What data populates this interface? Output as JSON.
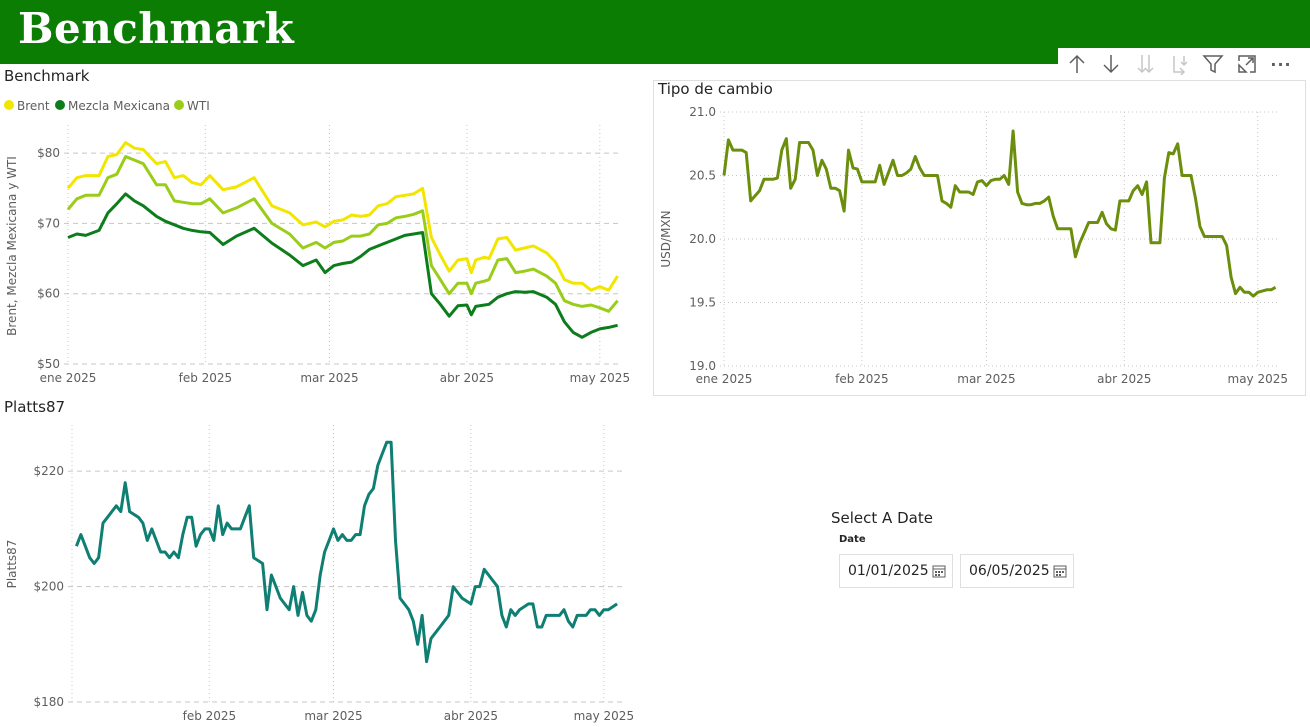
{
  "banner": {
    "title": "Benchmark"
  },
  "toolbar": {
    "buttons": [
      "arrow-up-icon",
      "arrow-down-icon",
      "double-arrow-down-icon",
      "expand-hierarchy-icon",
      "filter-icon",
      "focus-mode-icon",
      "more-options-icon"
    ],
    "more_label": "···"
  },
  "colors": {
    "banner": "#0b7d03",
    "brent": "#f2e600",
    "mezcla": "#0d7d1c",
    "wti": "#9acd19",
    "fx": "#6b8e0c",
    "platts": "#0e7f72"
  },
  "benchmark": {
    "title": "Benchmark",
    "legend": [
      "Brent",
      "Mezcla Mexicana",
      "WTI"
    ],
    "ylabel": "Brent, Mezcla Mexicana y WTI",
    "yticks": [
      "$50",
      "$60",
      "$70",
      "$80"
    ],
    "xticks": [
      "ene 2025",
      "feb 2025",
      "mar 2025",
      "abr 2025",
      "may 2025"
    ]
  },
  "fx_chart": {
    "title": "Tipo de cambio",
    "ylabel": "USD/MXN",
    "yticks": [
      "19.0",
      "19.5",
      "20.0",
      "20.5",
      "21.0"
    ],
    "xticks": [
      "ene 2025",
      "feb 2025",
      "mar 2025",
      "abr 2025",
      "may 2025"
    ]
  },
  "platts_chart": {
    "title": "Platts87",
    "ylabel": "Platts87",
    "yticks": [
      "$180",
      "$200",
      "$220"
    ],
    "xticks": [
      "feb 2025",
      "mar 2025",
      "abr 2025",
      "may 2025"
    ]
  },
  "slicer": {
    "title": "Select A Date",
    "label": "Date",
    "start": "01/01/2025",
    "end": "06/05/2025"
  },
  "chart_data": [
    {
      "type": "line",
      "title": "Benchmark",
      "ylabel": "Brent, Mezcla Mexicana y WTI",
      "ylim": [
        50,
        84
      ],
      "xlim": [
        0,
        125
      ],
      "x_axis": "days since 2025-01-01",
      "grid": true,
      "legend_position": "top-left",
      "series": [
        {
          "name": "Brent",
          "x": [
            0,
            2,
            4,
            7,
            9,
            11,
            13,
            15,
            17,
            20,
            22,
            24,
            26,
            28,
            30,
            32,
            35,
            38,
            42,
            46,
            50,
            53,
            56,
            58,
            60,
            62,
            64,
            66,
            68,
            70,
            72,
            74,
            76,
            78,
            80,
            82,
            84,
            86,
            88,
            90,
            91,
            92,
            94,
            95,
            97,
            99,
            101,
            103,
            105,
            108,
            110,
            112,
            114,
            116,
            118,
            120,
            122,
            124
          ],
          "y": [
            75,
            76.5,
            76.8,
            76.8,
            79.5,
            79.8,
            81.5,
            80.7,
            80.5,
            78.5,
            78.8,
            76.5,
            76.8,
            75.8,
            75.5,
            76.8,
            74.8,
            75.2,
            76.5,
            72.5,
            71.5,
            69.8,
            70.2,
            69.5,
            70.3,
            70.5,
            71.2,
            71,
            71.2,
            72.5,
            72.8,
            73.8,
            74,
            74.2,
            75,
            68,
            65.5,
            63.2,
            64.8,
            65,
            63,
            64.8,
            65.2,
            65,
            67.8,
            68,
            66.2,
            66.5,
            66.8,
            65.8,
            64.5,
            62,
            61.5,
            61.5,
            60.5,
            61,
            60.5,
            62.5
          ]
        },
        {
          "name": "Mezcla Mexicana",
          "x": [
            0,
            2,
            4,
            7,
            9,
            11,
            13,
            15,
            17,
            20,
            22,
            24,
            26,
            28,
            30,
            32,
            35,
            38,
            42,
            46,
            50,
            53,
            56,
            58,
            60,
            62,
            64,
            66,
            68,
            70,
            72,
            74,
            76,
            78,
            80,
            82,
            84,
            86,
            88,
            90,
            91,
            92,
            94,
            95,
            97,
            99,
            101,
            103,
            105,
            108,
            110,
            112,
            114,
            116,
            118,
            120,
            122,
            124
          ],
          "y": [
            68,
            68.5,
            68.3,
            69,
            71.5,
            72.8,
            74.2,
            73.2,
            72.5,
            71,
            70.3,
            69.8,
            69.3,
            69,
            68.8,
            68.7,
            67,
            68.2,
            69.3,
            67.2,
            65.5,
            64,
            64.8,
            63,
            64,
            64.3,
            64.5,
            65.3,
            66.3,
            66.8,
            67.3,
            67.8,
            68.3,
            68.5,
            68.7,
            60,
            58.5,
            56.8,
            58.3,
            58.4,
            57,
            58.2,
            58.4,
            58.5,
            59.5,
            60,
            60.3,
            60.2,
            60.3,
            59.5,
            58.5,
            56,
            54.5,
            53.8,
            54.5,
            55,
            55.2,
            55.5
          ]
        },
        {
          "name": "WTI",
          "x": [
            0,
            2,
            4,
            7,
            9,
            11,
            13,
            15,
            17,
            20,
            22,
            24,
            26,
            28,
            30,
            32,
            35,
            38,
            42,
            46,
            50,
            53,
            56,
            58,
            60,
            62,
            64,
            66,
            68,
            70,
            72,
            74,
            76,
            78,
            80,
            82,
            84,
            86,
            88,
            90,
            91,
            92,
            94,
            95,
            97,
            99,
            101,
            103,
            105,
            108,
            110,
            112,
            114,
            116,
            118,
            120,
            122,
            124
          ],
          "y": [
            72,
            73.5,
            74,
            74,
            76.5,
            77,
            79.5,
            79,
            78.5,
            75.5,
            75.5,
            73.2,
            73,
            72.8,
            72.8,
            73.5,
            71.5,
            72.2,
            73.5,
            70,
            68.5,
            66.5,
            67.3,
            66.5,
            67.3,
            67.5,
            68.2,
            68.2,
            68.5,
            69.8,
            70,
            70.8,
            71,
            71.3,
            71.8,
            64,
            62,
            60,
            61.5,
            61.5,
            60,
            61.5,
            61.8,
            62,
            64.8,
            65,
            63,
            63.2,
            63.5,
            62.5,
            61.5,
            59,
            58.5,
            58.2,
            58.4,
            58,
            57.5,
            59
          ]
        }
      ]
    },
    {
      "type": "line",
      "title": "Tipo de cambio",
      "ylabel": "USD/MXN",
      "ylim": [
        19.0,
        21.0
      ],
      "xlim": [
        0,
        125
      ],
      "x_axis": "days since 2025-01-01",
      "grid": true,
      "series": [
        {
          "name": "USD/MXN",
          "x": [
            0,
            1,
            2,
            3,
            4,
            5,
            6,
            8,
            9,
            11,
            12,
            13,
            14,
            15,
            16,
            17,
            18,
            19,
            20,
            21,
            22,
            23,
            24,
            25,
            26,
            27,
            28,
            29,
            30,
            31,
            32,
            33,
            34,
            35,
            36,
            38,
            39,
            40,
            41,
            42,
            43,
            44,
            45,
            46,
            47,
            48,
            49,
            50,
            51,
            52,
            53,
            54,
            55,
            56,
            57,
            58,
            59,
            60,
            61,
            62,
            63,
            64,
            65,
            66,
            67,
            68,
            69,
            70,
            71,
            72,
            73,
            74,
            75,
            76,
            77,
            78,
            79,
            80,
            81,
            82,
            83,
            84,
            85,
            86,
            87,
            88,
            89,
            90,
            91,
            92,
            93,
            94,
            95,
            96,
            97,
            98,
            99,
            100,
            101,
            102,
            103,
            104,
            105,
            106,
            107,
            108,
            109,
            110,
            111,
            112,
            113,
            114,
            115,
            116,
            117,
            118,
            119,
            120,
            121,
            122,
            123,
            124
          ],
          "y": [
            20.5,
            20.78,
            20.7,
            20.7,
            20.7,
            20.68,
            20.3,
            20.38,
            20.47,
            20.47,
            20.48,
            20.7,
            20.79,
            20.4,
            20.47,
            20.76,
            20.76,
            20.76,
            20.7,
            20.5,
            20.62,
            20.55,
            20.4,
            20.4,
            20.38,
            20.22,
            20.7,
            20.56,
            20.55,
            20.45,
            20.45,
            20.45,
            20.45,
            20.58,
            20.43,
            20.62,
            20.5,
            20.5,
            20.52,
            20.55,
            20.65,
            20.56,
            20.5,
            20.5,
            20.5,
            20.5,
            20.3,
            20.28,
            20.25,
            20.42,
            20.37,
            20.37,
            20.37,
            20.35,
            20.45,
            20.46,
            20.42,
            20.46,
            20.47,
            20.47,
            20.5,
            20.43,
            20.85,
            20.37,
            20.28,
            20.27,
            20.27,
            20.28,
            20.28,
            20.3,
            20.33,
            20.18,
            20.08,
            20.08,
            20.08,
            20.08,
            19.86,
            19.97,
            20.05,
            20.13,
            20.13,
            20.13,
            20.21,
            20.12,
            20.08,
            20.07,
            20.3,
            20.3,
            20.3,
            20.38,
            20.42,
            20.35,
            20.45,
            19.97,
            19.97,
            19.97,
            20.48,
            20.68,
            20.67,
            20.75,
            20.5,
            20.5,
            20.5,
            20.32,
            20.1,
            20.02,
            20.02,
            20.02,
            20.02,
            20.02,
            19.95,
            19.7,
            19.57,
            19.62,
            19.58,
            19.58,
            19.55,
            19.58,
            19.59,
            19.6,
            19.6,
            19.62
          ]
        }
      ]
    },
    {
      "type": "line",
      "title": "Platts87",
      "ylabel": "Platts87",
      "ylim": [
        180,
        228
      ],
      "xlim": [
        0,
        125
      ],
      "x_axis": "days since 2025-01-01",
      "grid": true,
      "series": [
        {
          "name": "Platts87",
          "x": [
            1,
            2,
            4,
            5,
            6,
            7,
            8,
            10,
            11,
            12,
            13,
            15,
            16,
            17,
            18,
            19,
            20,
            21,
            22,
            23,
            24,
            25,
            26,
            27,
            28,
            29,
            30,
            31,
            32,
            33,
            34,
            35,
            36,
            37,
            38,
            39,
            40,
            41,
            43,
            44,
            45,
            46,
            47,
            48,
            49,
            50,
            51,
            52,
            53,
            54,
            55,
            56,
            57,
            58,
            59,
            60,
            61,
            62,
            63,
            64,
            65,
            66,
            67,
            68,
            69,
            70,
            71,
            72,
            73,
            74,
            75,
            76,
            77,
            78,
            79,
            80,
            81,
            82,
            83,
            84,
            85,
            86,
            87,
            88,
            90,
            91,
            92,
            93,
            94,
            95,
            96,
            97,
            98,
            99,
            100,
            101,
            103,
            104,
            105,
            106,
            107,
            108,
            110,
            111,
            112,
            113,
            114,
            116,
            117,
            118,
            119,
            120,
            121,
            123
          ],
          "y": [
            207,
            209,
            205,
            204,
            205,
            211,
            212,
            214,
            213,
            218,
            213,
            212,
            211,
            208,
            210,
            208,
            206,
            206,
            205,
            206,
            205,
            209,
            212,
            212,
            207,
            209,
            210,
            210,
            208,
            214,
            209,
            211,
            210,
            210,
            210,
            212,
            214,
            205,
            204,
            196,
            202,
            200,
            198,
            197,
            196,
            200,
            195,
            199,
            195,
            194,
            196,
            202,
            206,
            208,
            210,
            208,
            209,
            208,
            208,
            209,
            209,
            214,
            216,
            217,
            221,
            223,
            225,
            225,
            208,
            198,
            197,
            196,
            194,
            190,
            195,
            187,
            191,
            192,
            193,
            194,
            195,
            200,
            199,
            198,
            197,
            200,
            200,
            203,
            202,
            201,
            200,
            195,
            193,
            196,
            195,
            196,
            197,
            197,
            193,
            193,
            195,
            195,
            195,
            196,
            194,
            193,
            195,
            195,
            196,
            196,
            195,
            196,
            196,
            197
          ]
        }
      ]
    }
  ]
}
